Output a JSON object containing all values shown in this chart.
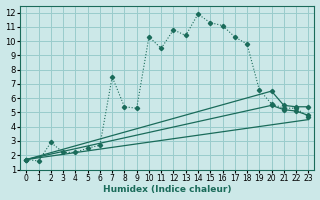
{
  "title": "",
  "xlabel": "Humidex (Indice chaleur)",
  "background_color": "#cce8e8",
  "grid_color": "#99cccc",
  "line_color": "#1a6b5a",
  "xlim": [
    -0.5,
    23.5
  ],
  "ylim": [
    1,
    12.5
  ],
  "xticks": [
    0,
    1,
    2,
    3,
    4,
    5,
    6,
    7,
    8,
    9,
    10,
    11,
    12,
    13,
    14,
    15,
    16,
    17,
    18,
    19,
    20,
    21,
    22,
    23
  ],
  "yticks": [
    1,
    2,
    3,
    4,
    5,
    6,
    7,
    8,
    9,
    10,
    11,
    12
  ],
  "main_series": {
    "x": [
      0,
      1,
      2,
      3,
      4,
      5,
      6,
      7,
      8,
      9,
      10,
      11,
      12,
      13,
      14,
      15,
      16,
      17,
      18,
      19,
      20,
      21,
      22,
      23
    ],
    "y": [
      1.7,
      1.6,
      2.9,
      2.2,
      2.2,
      2.5,
      2.7,
      7.5,
      5.4,
      5.3,
      10.3,
      9.5,
      10.8,
      10.4,
      11.9,
      11.3,
      11.1,
      10.3,
      9.8,
      6.6,
      5.6,
      5.3,
      5.3,
      4.7
    ]
  },
  "linear_series": [
    {
      "x": [
        0,
        20,
        21,
        22,
        23
      ],
      "y": [
        1.7,
        6.5,
        5.5,
        5.4,
        5.4
      ]
    },
    {
      "x": [
        0,
        20,
        21,
        22,
        23
      ],
      "y": [
        1.7,
        5.5,
        5.2,
        5.1,
        4.8
      ]
    },
    {
      "x": [
        0,
        23
      ],
      "y": [
        1.7,
        4.5
      ]
    }
  ]
}
